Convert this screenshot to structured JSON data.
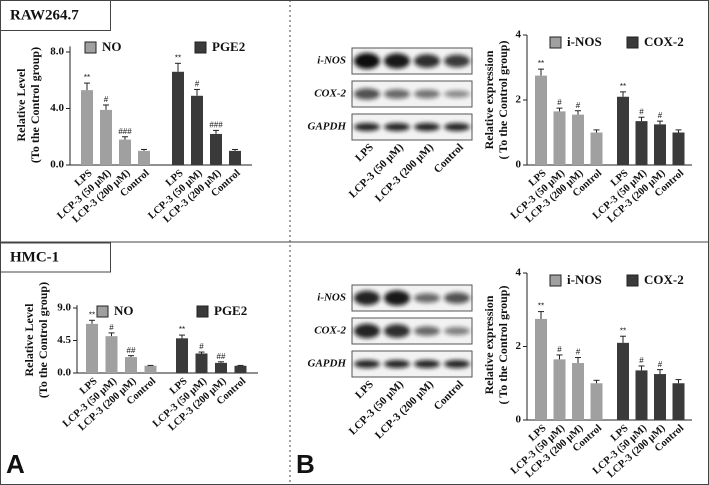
{
  "panels": {
    "cell_lines": [
      "RAW264.7",
      "HMC-1"
    ],
    "letters": [
      "A",
      "B"
    ]
  },
  "blots": [
    {
      "rows": [
        "i-NOS",
        "COX-2",
        "GAPDH"
      ],
      "lanes": [
        "LPS",
        "LCP-3 (50 μM)",
        "LCP-3 (200 μM)",
        "Control"
      ]
    },
    {
      "rows": [
        "i-NOS",
        "COX-2",
        "GAPDH"
      ],
      "lanes": [
        "LPS",
        "LCP-3 (50 μM)",
        "LCP-3 (200 μM)",
        "Control"
      ]
    }
  ],
  "chart_data": [
    {
      "type": "bar",
      "ylabel": [
        "Relative Level",
        "(To the Control group)"
      ],
      "ylim": [
        0,
        8.4
      ],
      "yticks": [
        {
          "value": 0,
          "label": "0.0"
        },
        {
          "value": 4,
          "label": "4.0"
        },
        {
          "value": 8,
          "label": "8.0"
        }
      ],
      "categories": [
        "LPS",
        "LCP-3 (50 μM)",
        "LCP-3 (200 μM)",
        "Control"
      ],
      "series": [
        {
          "name": "NO",
          "color": "#a0a0a0",
          "values": [
            5.3,
            3.9,
            1.8,
            1.0
          ],
          "errors": [
            0.5,
            0.35,
            0.2,
            0.1
          ],
          "annotations": [
            "**",
            "#",
            "###",
            null
          ]
        },
        {
          "name": "PGE2",
          "color": "#3a3a3a",
          "values": [
            6.6,
            4.9,
            2.2,
            1.0
          ],
          "errors": [
            0.6,
            0.45,
            0.25,
            0.1
          ],
          "annotations": [
            "**",
            "#",
            "###",
            null
          ]
        }
      ]
    },
    {
      "type": "bar",
      "ylabel": [
        "Relative expression",
        "( To the Control group)"
      ],
      "ylim": [
        0,
        4
      ],
      "yticks": [
        0,
        2,
        4
      ],
      "categories": [
        "LPS",
        "LCP-3 (50 μM)",
        "LCP-3 (200 μM)",
        "Control"
      ],
      "series": [
        {
          "name": "i-NOS",
          "color": "#a0a0a0",
          "values": [
            2.75,
            1.65,
            1.55,
            1.0
          ],
          "errors": [
            0.2,
            0.1,
            0.12,
            0.08
          ],
          "annotations": [
            "**",
            "#",
            "#",
            null
          ]
        },
        {
          "name": "COX-2",
          "color": "#3a3a3a",
          "values": [
            2.1,
            1.35,
            1.25,
            1.0
          ],
          "errors": [
            0.15,
            0.12,
            0.1,
            0.08
          ],
          "annotations": [
            "**",
            "#",
            "#",
            null
          ]
        }
      ]
    },
    {
      "type": "bar",
      "ylabel": [
        "Relative Level",
        "(To the Control group)"
      ],
      "ylim": [
        0,
        9.4
      ],
      "yticks": [
        {
          "value": 0,
          "label": "0.0"
        },
        4.5,
        {
          "value": 9,
          "label": "9.0"
        }
      ],
      "categories": [
        "LPS",
        "LCP-3 (50 μM)",
        "LCP-3 (200 μM)",
        "Control"
      ],
      "series": [
        {
          "name": "NO",
          "color": "#a0a0a0",
          "values": [
            6.8,
            5.1,
            2.2,
            1.0
          ],
          "errors": [
            0.5,
            0.45,
            0.2,
            0.05
          ],
          "annotations": [
            "**",
            "#",
            "##",
            null
          ]
        },
        {
          "name": "PGE2",
          "color": "#3a3a3a",
          "values": [
            4.8,
            2.7,
            1.4,
            1.0
          ],
          "errors": [
            0.45,
            0.2,
            0.15,
            0.05
          ],
          "annotations": [
            "**",
            "#",
            "##",
            null
          ]
        }
      ]
    },
    {
      "type": "bar",
      "ylabel": [
        "Relative expression",
        "( To the Control group)"
      ],
      "ylim": [
        0,
        4
      ],
      "yticks": [
        0,
        2,
        4
      ],
      "categories": [
        "LPS",
        "LCP-3 (50 μM)",
        "LCP-3 (200 μM)",
        "Control"
      ],
      "series": [
        {
          "name": "i-NOS",
          "color": "#a0a0a0",
          "values": [
            2.75,
            1.65,
            1.55,
            1.0
          ],
          "errors": [
            0.2,
            0.12,
            0.15,
            0.08
          ],
          "annotations": [
            "**",
            "#",
            "#",
            null
          ]
        },
        {
          "name": "COX-2",
          "color": "#3a3a3a",
          "values": [
            2.1,
            1.35,
            1.25,
            1.0
          ],
          "errors": [
            0.18,
            0.12,
            0.12,
            0.1
          ],
          "annotations": [
            "**",
            "#",
            "#",
            null
          ]
        }
      ]
    }
  ]
}
